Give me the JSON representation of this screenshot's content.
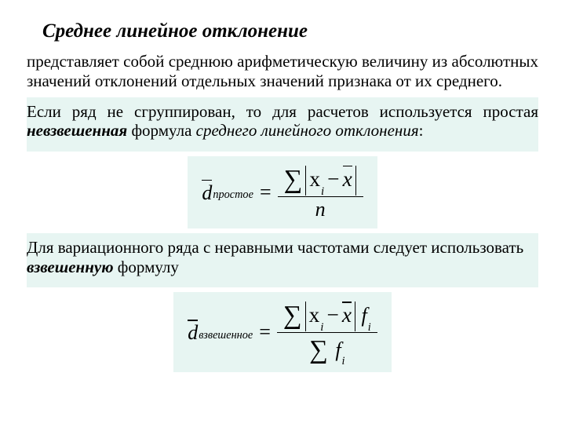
{
  "colors": {
    "band_bg": "#e7f5f2",
    "page_bg": "#ffffff",
    "text": "#000000"
  },
  "typography": {
    "base_family": "Times New Roman",
    "title_pt": 25,
    "body_pt": 21,
    "formula_pt": 26
  },
  "title": "Среднее линейное отклонение",
  "p1": "представляет собой среднюю арифметическую величину из абсолютных значений отклонений отдельных значений признака от их среднего.",
  "p2_a": "Если ряд не сгруппирован, то для расчетов используется простая ",
  "p2_b": "невзвешенная",
  "p2_c": " формула ",
  "p2_d": "среднего линейного отклонения",
  "p2_e": ":",
  "p3_a": "Для вариационного ряда с неравными частотами следует использовать ",
  "p3_b": "взвешенную",
  "p3_c": " формулу",
  "f1": {
    "lhs_sym": "d",
    "lhs_sub": "простое",
    "num_sum": "∑",
    "num_xi": "x",
    "num_xi_sub": "i",
    "num_minus": "−",
    "num_xbar": "x",
    "den": "n"
  },
  "f2": {
    "lhs_sym": "d",
    "lhs_sub": "взвешенное",
    "num_sum": "∑",
    "num_xi": "x",
    "num_xi_sub": "i",
    "num_minus": "−",
    "num_xbar": "x",
    "num_f": "f",
    "num_f_sub": "i",
    "den_sum": "∑",
    "den_f": "f",
    "den_f_sub": "i"
  }
}
